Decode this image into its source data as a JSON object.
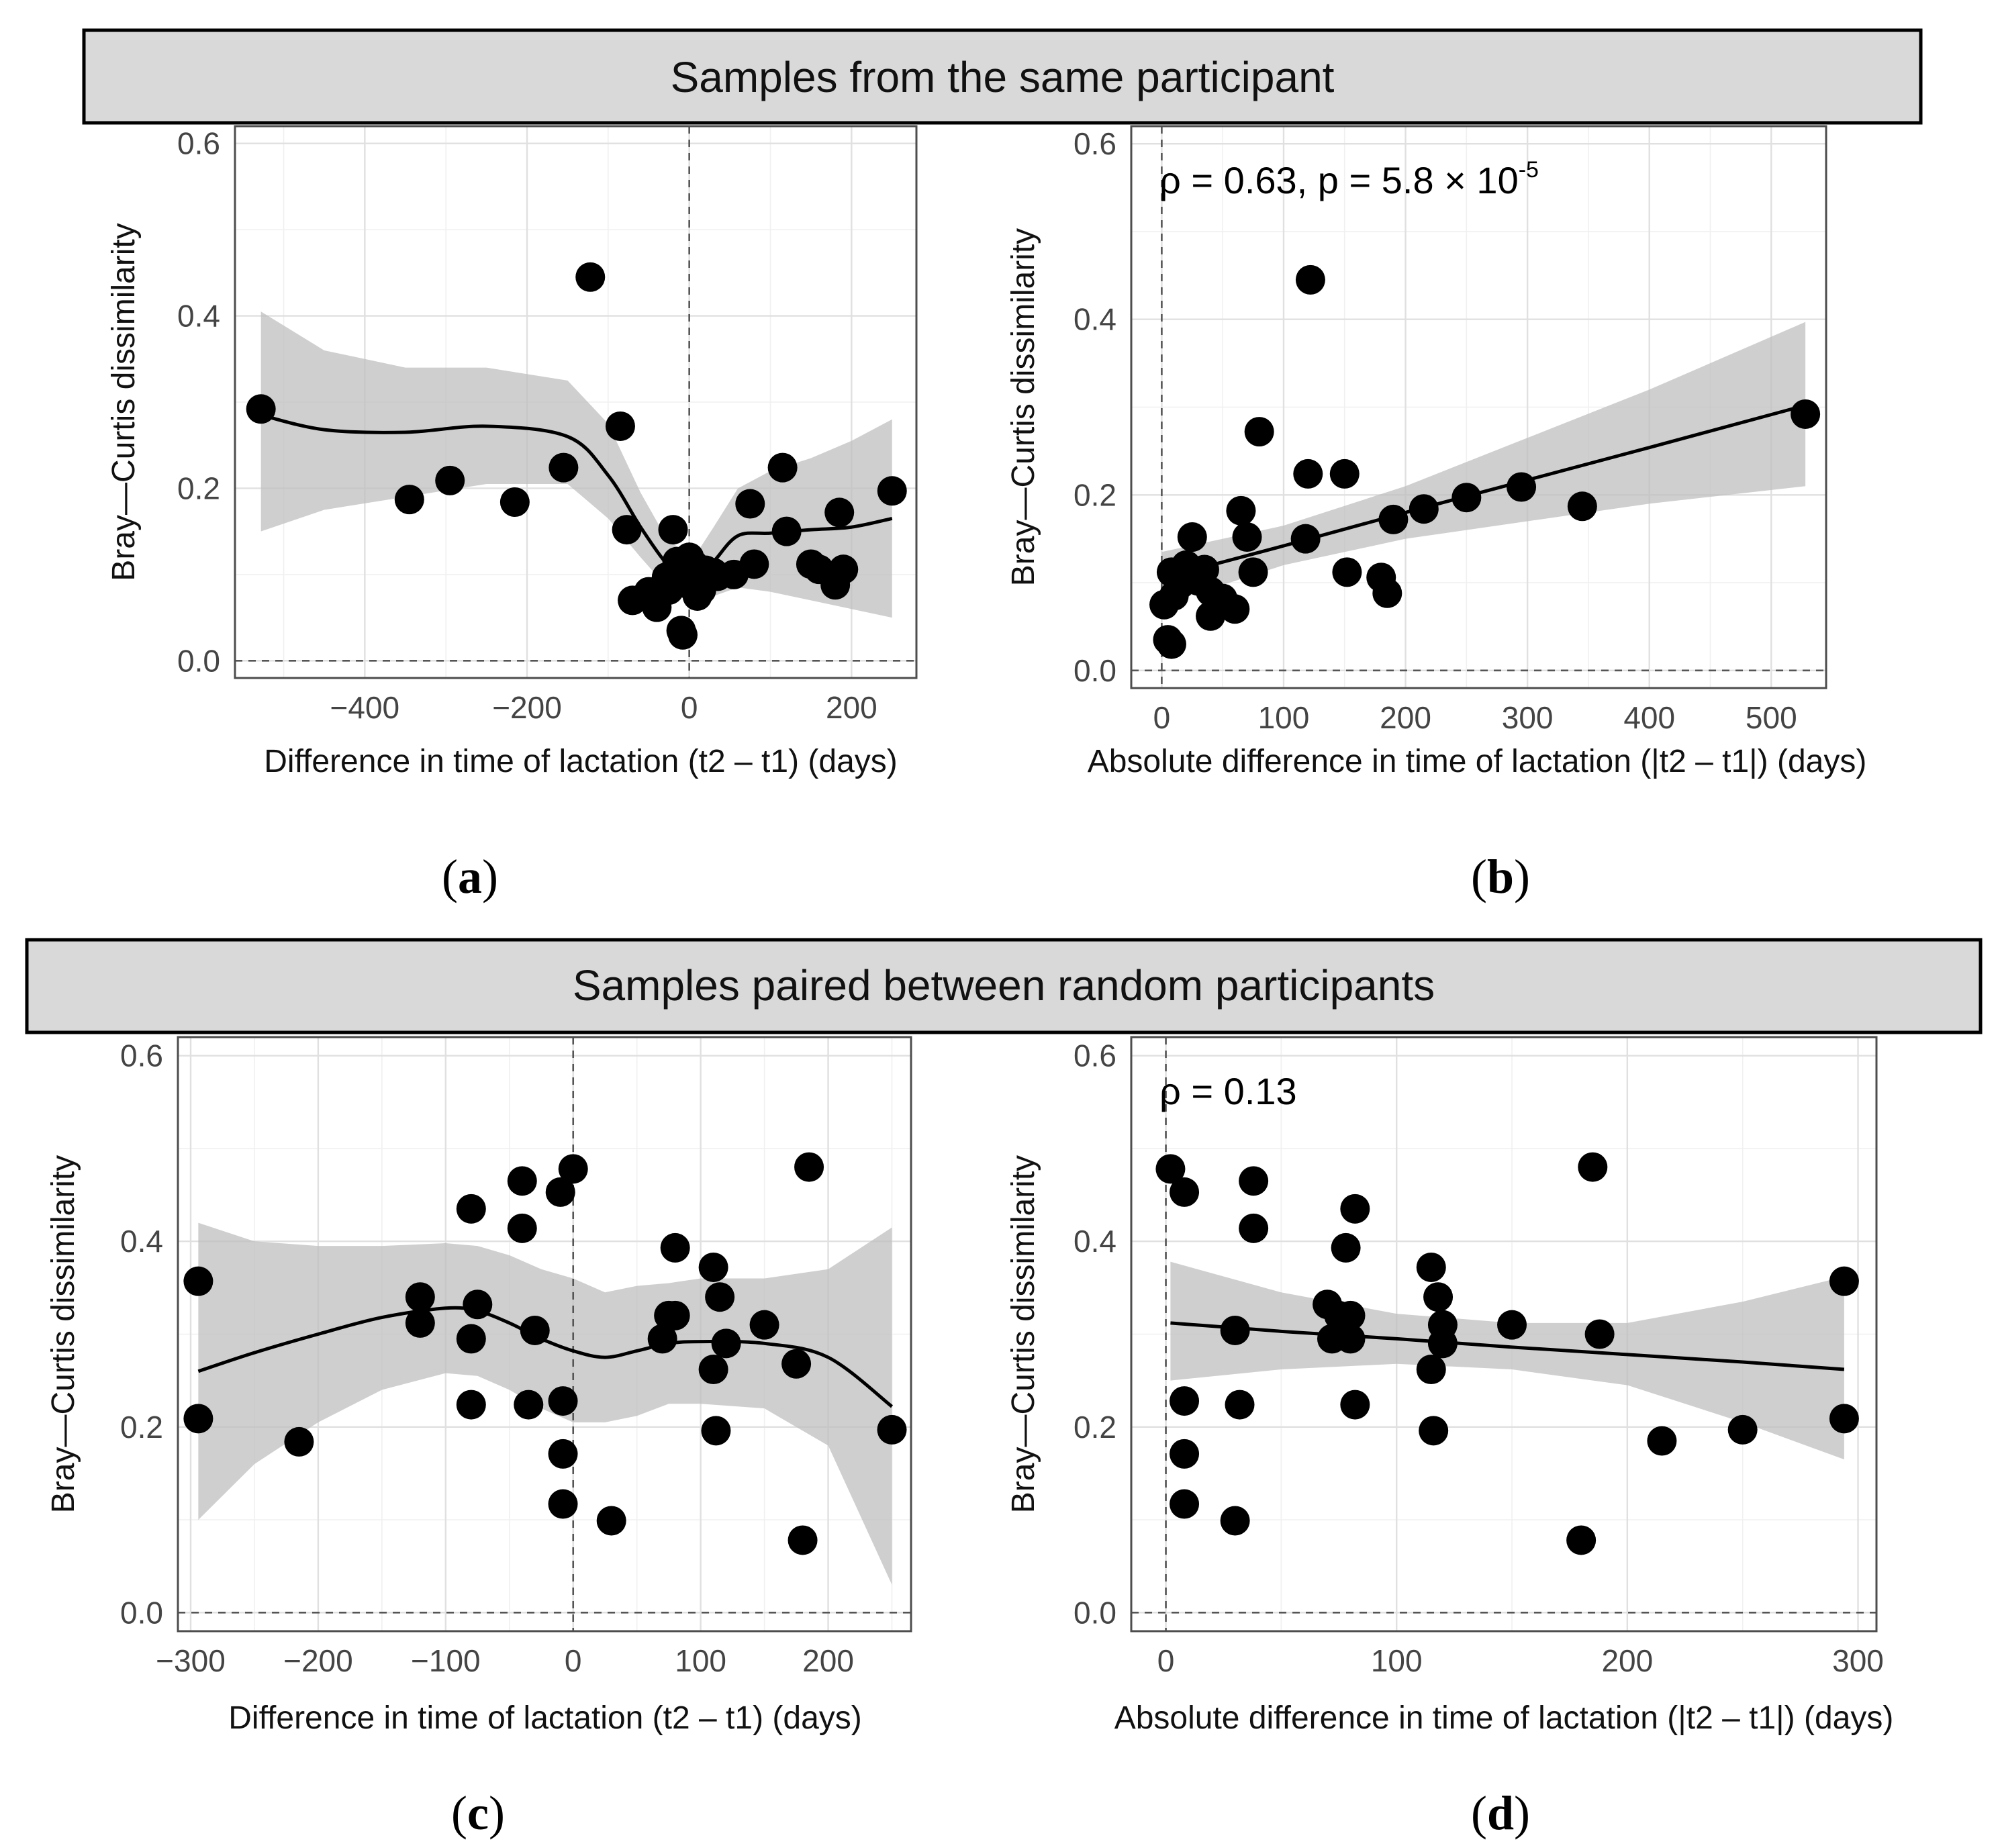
{
  "figure": {
    "banners": {
      "top": "Samples from the same participant",
      "bottom": "Samples paired between random participants"
    }
  },
  "chart_data": [
    {
      "id": "a",
      "type": "scatter",
      "caption": "a",
      "xlabel": "Difference in time of lactation (t2 – t1) (days)",
      "ylabel": "Bray—Curtis dissimilarity",
      "xlim": [
        -560,
        280
      ],
      "ylim": [
        -0.02,
        0.62
      ],
      "xticks": [
        -400,
        -200,
        0,
        200
      ],
      "xtick_labels": [
        "−400",
        "−200",
        "0",
        "200"
      ],
      "yticks": [
        0.0,
        0.2,
        0.4,
        0.6
      ],
      "ytick_labels": [
        "0.0",
        "0.2",
        "0.4",
        "0.6"
      ],
      "vline": 0,
      "hline": 0,
      "smooth": {
        "method": "loess",
        "x": [
          -528,
          -450,
          -350,
          -250,
          -150,
          -100,
          -60,
          -30,
          -10,
          10,
          30,
          60,
          100,
          150,
          200,
          250
        ],
        "y": [
          0.285,
          0.268,
          0.265,
          0.272,
          0.26,
          0.215,
          0.155,
          0.115,
          0.1,
          0.098,
          0.115,
          0.145,
          0.148,
          0.152,
          0.155,
          0.165
        ],
        "lower": [
          0.15,
          0.175,
          0.19,
          0.205,
          0.205,
          0.165,
          0.12,
          0.088,
          0.073,
          0.07,
          0.075,
          0.085,
          0.08,
          0.07,
          0.06,
          0.05
        ],
        "upper": [
          0.405,
          0.36,
          0.34,
          0.34,
          0.325,
          0.275,
          0.195,
          0.145,
          0.128,
          0.126,
          0.155,
          0.2,
          0.22,
          0.235,
          0.255,
          0.28
        ]
      },
      "points": {
        "x": [
          -528,
          -345,
          -295,
          -215,
          -155,
          -122,
          -85,
          -77,
          -70,
          -50,
          -40,
          -28,
          -25,
          -20,
          -15,
          -10,
          -8,
          -5,
          0,
          5,
          10,
          15,
          20,
          30,
          35,
          55,
          75,
          80,
          115,
          120,
          150,
          160,
          180,
          185,
          190,
          250
        ],
        "y": [
          0.292,
          0.187,
          0.209,
          0.184,
          0.224,
          0.445,
          0.272,
          0.152,
          0.07,
          0.08,
          0.062,
          0.097,
          0.082,
          0.152,
          0.115,
          0.035,
          0.03,
          0.09,
          0.12,
          0.112,
          0.075,
          0.082,
          0.105,
          0.102,
          0.098,
          0.1,
          0.182,
          0.112,
          0.224,
          0.15,
          0.112,
          0.106,
          0.088,
          0.172,
          0.106,
          0.197
        ]
      }
    },
    {
      "id": "b",
      "type": "scatter",
      "caption": "b",
      "xlabel": "Absolute difference in time of lactation (|t2 – t1|) (days)",
      "ylabel": "Bray—Curtis dissimilarity",
      "annotation": {
        "text": "ρ = 0.63, p = 5.8 × 10",
        "superscript": "-5"
      },
      "xlim": [
        -25,
        545
      ],
      "ylim": [
        -0.02,
        0.62
      ],
      "xticks": [
        0,
        100,
        200,
        300,
        400,
        500
      ],
      "xtick_labels": [
        "0",
        "100",
        "200",
        "300",
        "400",
        "500"
      ],
      "yticks": [
        0.0,
        0.2,
        0.4,
        0.6
      ],
      "ytick_labels": [
        "0.0",
        "0.2",
        "0.4",
        "0.6"
      ],
      "vline": 0,
      "hline": 0,
      "smooth": {
        "method": "lm",
        "x": [
          0,
          100,
          200,
          300,
          400,
          528
        ],
        "y": [
          0.105,
          0.142,
          0.18,
          0.217,
          0.254,
          0.302
        ],
        "lower": [
          0.075,
          0.12,
          0.15,
          0.17,
          0.19,
          0.21
        ],
        "upper": [
          0.135,
          0.165,
          0.21,
          0.265,
          0.32,
          0.397
        ]
      },
      "points": {
        "x": [
          2,
          5,
          8,
          8,
          10,
          15,
          20,
          25,
          30,
          35,
          40,
          40,
          50,
          60,
          65,
          70,
          75,
          80,
          118,
          120,
          122,
          150,
          152,
          180,
          185,
          190,
          215,
          250,
          295,
          345,
          528
        ],
        "y": [
          0.075,
          0.035,
          0.03,
          0.112,
          0.085,
          0.098,
          0.12,
          0.152,
          0.102,
          0.115,
          0.062,
          0.09,
          0.082,
          0.07,
          0.182,
          0.152,
          0.112,
          0.272,
          0.15,
          0.224,
          0.445,
          0.224,
          0.112,
          0.106,
          0.088,
          0.172,
          0.184,
          0.197,
          0.209,
          0.187,
          0.292
        ]
      }
    },
    {
      "id": "c",
      "type": "scatter",
      "caption": "c",
      "xlabel": "Difference in time of lactation (t2 – t1) (days)",
      "ylabel": "Bray—Curtis dissimilarity",
      "xlim": [
        -310,
        265
      ],
      "ylim": [
        -0.02,
        0.62
      ],
      "xticks": [
        -300,
        -200,
        -100,
        0,
        100,
        200
      ],
      "xtick_labels": [
        "−300",
        "−200",
        "−100",
        "0",
        "100",
        "200"
      ],
      "yticks": [
        0.0,
        0.2,
        0.4,
        0.6
      ],
      "ytick_labels": [
        "0.0",
        "0.2",
        "0.4",
        "0.6"
      ],
      "vline": 0,
      "hline": 0,
      "smooth": {
        "method": "loess",
        "x": [
          -294,
          -250,
          -200,
          -150,
          -100,
          -75,
          -50,
          -25,
          0,
          25,
          50,
          75,
          100,
          150,
          200,
          250
        ],
        "y": [
          0.26,
          0.28,
          0.3,
          0.318,
          0.328,
          0.325,
          0.312,
          0.295,
          0.282,
          0.275,
          0.282,
          0.29,
          0.292,
          0.29,
          0.275,
          0.222
        ],
        "lower": [
          0.1,
          0.16,
          0.205,
          0.24,
          0.258,
          0.255,
          0.24,
          0.22,
          0.205,
          0.205,
          0.212,
          0.225,
          0.225,
          0.22,
          0.18,
          0.03
        ],
        "upper": [
          0.42,
          0.4,
          0.395,
          0.395,
          0.398,
          0.395,
          0.385,
          0.37,
          0.36,
          0.345,
          0.352,
          0.355,
          0.36,
          0.36,
          0.37,
          0.415
        ]
      },
      "points": {
        "x": [
          -294,
          -294,
          -215,
          -120,
          -120,
          -80,
          -80,
          -80,
          -75,
          -40,
          -40,
          -35,
          -30,
          -10,
          -8,
          -8,
          -8,
          0,
          30,
          70,
          75,
          80,
          80,
          110,
          110,
          112,
          115,
          120,
          150,
          175,
          180,
          185,
          250
        ],
        "y": [
          0.357,
          0.209,
          0.184,
          0.34,
          0.312,
          0.435,
          0.295,
          0.224,
          0.332,
          0.465,
          0.414,
          0.224,
          0.304,
          0.453,
          0.228,
          0.171,
          0.117,
          0.478,
          0.099,
          0.295,
          0.32,
          0.393,
          0.32,
          0.372,
          0.262,
          0.196,
          0.34,
          0.29,
          0.31,
          0.268,
          0.078,
          0.48,
          0.197
        ]
      }
    },
    {
      "id": "d",
      "type": "scatter",
      "caption": "d",
      "xlabel": "Absolute difference in time of lactation (|t2 – t1|) (days)",
      "ylabel": "Bray—Curtis dissimilarity",
      "annotation": {
        "text": "ρ = 0.13",
        "superscript": ""
      },
      "xlim": [
        -15,
        308
      ],
      "ylim": [
        -0.02,
        0.62
      ],
      "xticks": [
        0,
        100,
        200,
        300
      ],
      "xtick_labels": [
        "0",
        "100",
        "200",
        "300"
      ],
      "yticks": [
        0.0,
        0.2,
        0.4,
        0.6
      ],
      "ytick_labels": [
        "0.0",
        "0.2",
        "0.4",
        "0.6"
      ],
      "vline": 0,
      "hline": 0,
      "smooth": {
        "method": "lm",
        "x": [
          2,
          50,
          100,
          150,
          200,
          250,
          294
        ],
        "y": [
          0.312,
          0.303,
          0.295,
          0.286,
          0.278,
          0.27,
          0.262
        ],
        "lower": [
          0.25,
          0.262,
          0.268,
          0.262,
          0.245,
          0.205,
          0.165
        ],
        "upper": [
          0.378,
          0.345,
          0.322,
          0.312,
          0.312,
          0.335,
          0.362
        ]
      },
      "points": {
        "x": [
          2,
          8,
          8,
          8,
          8,
          30,
          30,
          32,
          38,
          38,
          70,
          72,
          75,
          78,
          80,
          80,
          82,
          82,
          115,
          115,
          116,
          118,
          120,
          120,
          150,
          180,
          185,
          188,
          215,
          250,
          294,
          294
        ],
        "y": [
          0.478,
          0.453,
          0.228,
          0.171,
          0.117,
          0.304,
          0.099,
          0.224,
          0.465,
          0.414,
          0.332,
          0.295,
          0.32,
          0.393,
          0.32,
          0.295,
          0.435,
          0.224,
          0.372,
          0.262,
          0.196,
          0.34,
          0.31,
          0.29,
          0.31,
          0.078,
          0.48,
          0.3,
          0.185,
          0.197,
          0.357,
          0.209
        ]
      }
    }
  ]
}
